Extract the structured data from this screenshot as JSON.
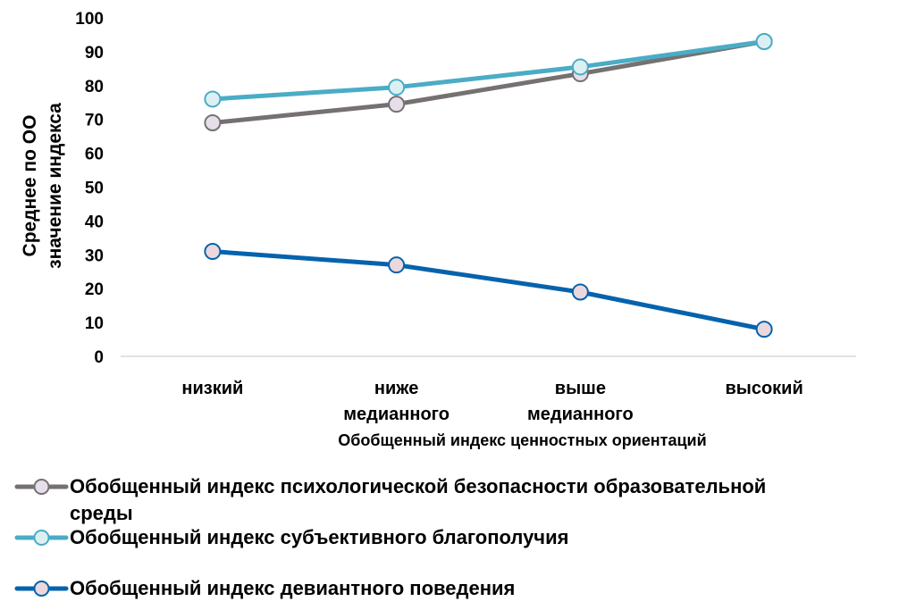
{
  "chart_data": {
    "type": "line",
    "categories": [
      [
        "низкий"
      ],
      [
        "ниже",
        "медианного"
      ],
      [
        "выше",
        "медианного"
      ],
      [
        "высокий"
      ]
    ],
    "xlabel": "Обобщенный индекс ценностных ориентаций",
    "ylabel": [
      "Среднее по ОО",
      "значение индекса"
    ],
    "ylim": [
      0,
      100
    ],
    "yticks": [
      0,
      10,
      20,
      30,
      40,
      50,
      60,
      70,
      80,
      90,
      100
    ],
    "grid": false,
    "legend_position": "bottom",
    "series": [
      {
        "name": "Обобщенный индекс психологической безопасности образовательной среды",
        "legend_lines": [
          "Обобщенный индекс психологической безопасности образовательной",
          "среды"
        ],
        "values": [
          69,
          74.5,
          83.5,
          93
        ],
        "line_color": "#767171",
        "marker_fill": "#e6dfea"
      },
      {
        "name": "Обобщенный индекс субъективного благополучия",
        "legend_lines": [
          "Обобщенный индекс субъективного благополучия"
        ],
        "values": [
          76,
          79.5,
          85.5,
          93
        ],
        "line_color": "#4bacc6",
        "marker_fill": "#dcf0f3"
      },
      {
        "name": "Обобщенный индекс девиантного поведения",
        "legend_lines": [
          "Обобщенный индекс девиантного поведения"
        ],
        "values": [
          31,
          27,
          19,
          8
        ],
        "line_color": "#0563ad",
        "marker_fill": "#ecd8dc"
      }
    ]
  }
}
